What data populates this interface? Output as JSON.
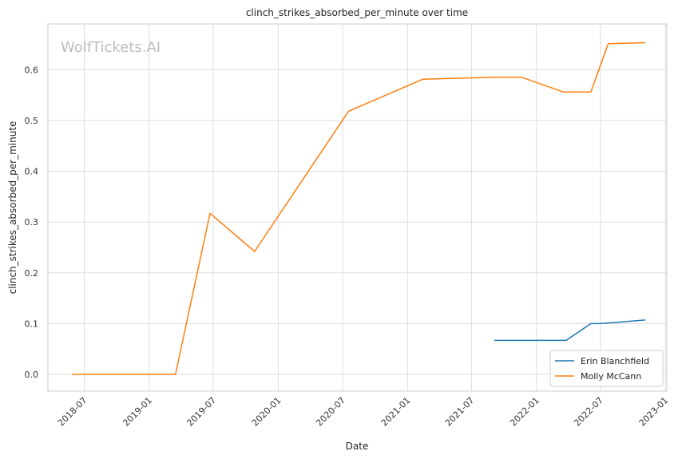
{
  "watermark": "WolfTickets.AI",
  "chart_data": {
    "type": "line",
    "title": "clinch_strikes_absorbed_per_minute over time",
    "xlabel": "Date",
    "ylabel": "clinch_strikes_absorbed_per_minute",
    "x_ticks": [
      "2018-07",
      "2019-01",
      "2019-07",
      "2020-01",
      "2020-07",
      "2021-01",
      "2021-07",
      "2022-01",
      "2022-07",
      "2023-01"
    ],
    "y_ticks": [
      "0.0",
      "0.1",
      "0.2",
      "0.3",
      "0.4",
      "0.5",
      "0.6"
    ],
    "xlim": [
      "2018-03-20",
      "2023-01-05"
    ],
    "ylim": [
      -0.033,
      0.69
    ],
    "grid": true,
    "legend_position": "bottom-right",
    "series": [
      {
        "name": "Erin Blanchfield",
        "color": "#1f77b4",
        "x": [
          "2021-09-04",
          "2022-03-26",
          "2022-06-04",
          "2022-07-01",
          "2022-11-05"
        ],
        "y": [
          0.067,
          0.067,
          0.1,
          0.1,
          0.107
        ]
      },
      {
        "name": "Molly McCann",
        "color": "#ff7f0e",
        "x": [
          "2018-05-27",
          "2019-03-16",
          "2019-06-22",
          "2019-10-26",
          "2020-07-18",
          "2021-02-13",
          "2021-09-04",
          "2021-11-20",
          "2022-03-19",
          "2022-06-04",
          "2022-07-23",
          "2022-11-05"
        ],
        "y": [
          0.0,
          0.0,
          0.317,
          0.242,
          0.518,
          0.581,
          0.585,
          0.585,
          0.556,
          0.556,
          0.651,
          0.653
        ]
      }
    ]
  }
}
